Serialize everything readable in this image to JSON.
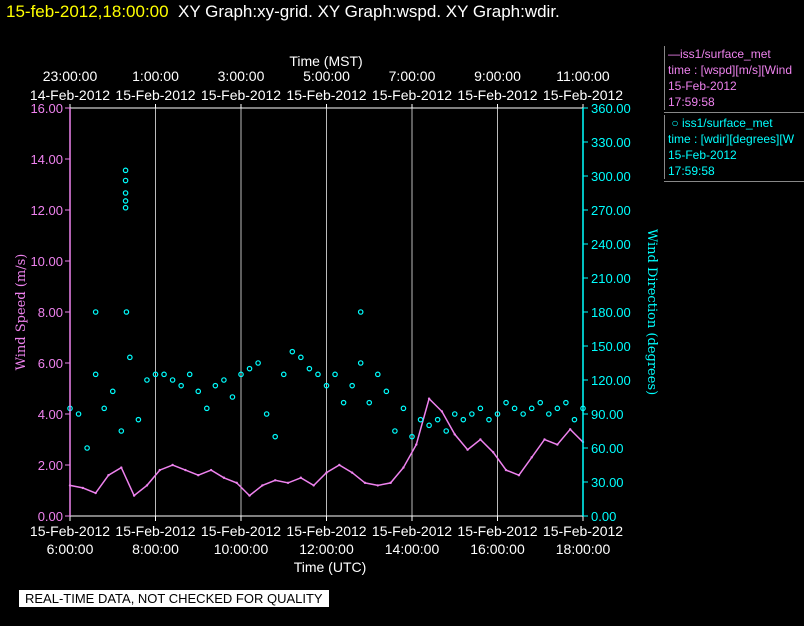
{
  "header": {
    "timestamp": "15-feb-2012,18:00:00",
    "graphs": "XY Graph:xy-grid.  XY Graph:wspd.  XY Graph:wdir."
  },
  "legend": {
    "wspd": {
      "marker": "—",
      "name": "iss1/surface_met",
      "var": "time : [wspd][m/s][Wind",
      "date": "15-Feb-2012",
      "time": "17:59:58",
      "color": "#ee82ee"
    },
    "wdir": {
      "marker": "○",
      "name": "iss1/surface_met",
      "var": "time : [wdir][degrees][W",
      "date": "15-Feb-2012",
      "time": "17:59:58",
      "color": "#00ffff"
    }
  },
  "footer": {
    "quality_note": "REAL-TIME DATA, NOT CHECKED FOR QUALITY"
  },
  "chart_data": {
    "type": "line",
    "top_axis": {
      "label": "Time (MST)",
      "ticks": [
        {
          "time": "23:00:00",
          "date": "14-Feb-2012"
        },
        {
          "time": "1:00:00",
          "date": "15-Feb-2012"
        },
        {
          "time": "3:00:00",
          "date": "15-Feb-2012"
        },
        {
          "time": "5:00:00",
          "date": "15-Feb-2012"
        },
        {
          "time": "7:00:00",
          "date": "15-Feb-2012"
        },
        {
          "time": "9:00:00",
          "date": "15-Feb-2012"
        },
        {
          "time": "11:00:00",
          "date": "15-Feb-2012"
        }
      ]
    },
    "bottom_axis": {
      "label": "Time (UTC)",
      "ticks": [
        {
          "date": "15-Feb-2012",
          "time": "6:00:00"
        },
        {
          "date": "15-Feb-2012",
          "time": "8:00:00"
        },
        {
          "date": "15-Feb-2012",
          "time": "10:00:00"
        },
        {
          "date": "15-Feb-2012",
          "time": "12:00:00"
        },
        {
          "date": "15-Feb-2012",
          "time": "14:00:00"
        },
        {
          "date": "15-Feb-2012",
          "time": "16:00:00"
        },
        {
          "date": "15-Feb-2012",
          "time": "18:00:00"
        }
      ],
      "range_hours_utc": [
        6,
        18
      ]
    },
    "left_axis": {
      "label": "Wind Speed (m/s)",
      "ticks": [
        "0.00",
        "2.00",
        "4.00",
        "6.00",
        "8.00",
        "10.00",
        "12.00",
        "14.00",
        "16.00"
      ],
      "range": [
        0,
        16
      ],
      "color": "#ee82ee"
    },
    "right_axis": {
      "label": "Wind Direction (degrees)",
      "ticks": [
        "0.00",
        "30.00",
        "60.00",
        "90.00",
        "120.00",
        "150.00",
        "180.00",
        "210.00",
        "240.00",
        "270.00",
        "300.00",
        "330.00",
        "360.00"
      ],
      "range": [
        0,
        360
      ],
      "color": "#00ffff"
    },
    "grid": "vertical",
    "series": [
      {
        "name": "iss1/surface_met wspd",
        "style": "line",
        "color": "#ee82ee",
        "axis": "left",
        "x_hours_utc": [
          6.0,
          6.3,
          6.6,
          6.9,
          7.2,
          7.5,
          7.8,
          8.1,
          8.4,
          8.7,
          9.0,
          9.3,
          9.6,
          9.9,
          10.2,
          10.5,
          10.8,
          11.1,
          11.4,
          11.7,
          12.0,
          12.3,
          12.6,
          12.9,
          13.2,
          13.5,
          13.8,
          14.1,
          14.4,
          14.7,
          15.0,
          15.3,
          15.6,
          15.9,
          16.2,
          16.5,
          16.8,
          17.1,
          17.4,
          17.7,
          18.0
        ],
        "values": [
          1.2,
          1.1,
          0.9,
          1.6,
          1.9,
          0.8,
          1.2,
          1.8,
          2.0,
          1.8,
          1.6,
          1.8,
          1.5,
          1.3,
          0.8,
          1.2,
          1.4,
          1.3,
          1.5,
          1.2,
          1.7,
          2.0,
          1.7,
          1.3,
          1.2,
          1.3,
          1.9,
          2.8,
          4.6,
          4.1,
          3.2,
          2.6,
          3.0,
          2.5,
          1.8,
          1.6,
          2.3,
          3.0,
          2.8,
          3.4,
          2.9
        ]
      },
      {
        "name": "iss1/surface_met wdir",
        "style": "markers",
        "color": "#00ffff",
        "axis": "right",
        "x_hours_utc": [
          6.0,
          6.2,
          6.4,
          6.6,
          6.8,
          7.0,
          7.2,
          7.4,
          7.6,
          7.8,
          8.0,
          8.2,
          8.4,
          8.6,
          8.8,
          9.0,
          9.2,
          9.4,
          9.6,
          9.8,
          10.0,
          10.2,
          10.4,
          10.6,
          10.8,
          11.0,
          11.2,
          11.4,
          11.6,
          11.8,
          12.0,
          12.2,
          12.4,
          12.6,
          12.8,
          13.0,
          13.2,
          13.4,
          13.6,
          13.8,
          14.0,
          14.2,
          14.4,
          14.6,
          14.8,
          15.0,
          15.2,
          15.4,
          15.6,
          15.8,
          16.0,
          16.2,
          16.4,
          16.6,
          16.8,
          17.0,
          17.2,
          17.4,
          17.6,
          17.8,
          18.0
        ],
        "values": [
          95,
          90,
          60,
          125,
          95,
          110,
          75,
          140,
          85,
          120,
          125,
          125,
          120,
          115,
          125,
          110,
          95,
          115,
          120,
          105,
          125,
          130,
          135,
          90,
          70,
          125,
          145,
          140,
          130,
          125,
          115,
          125,
          100,
          115,
          135,
          100,
          125,
          110,
          75,
          95,
          70,
          85,
          80,
          85,
          75,
          90,
          85,
          90,
          95,
          85,
          90,
          100,
          95,
          90,
          95,
          100,
          90,
          95,
          100,
          85,
          95
        ]
      },
      {
        "name": "iss1/surface_met wdir spikes",
        "style": "markers",
        "color": "#00ffff",
        "axis": "right",
        "x_hours_utc": [
          6.6,
          7.3,
          7.3,
          7.3,
          7.3,
          7.3,
          7.32,
          12.8
        ],
        "values": [
          180,
          305,
          296,
          285,
          278,
          272,
          180,
          180
        ]
      }
    ]
  }
}
